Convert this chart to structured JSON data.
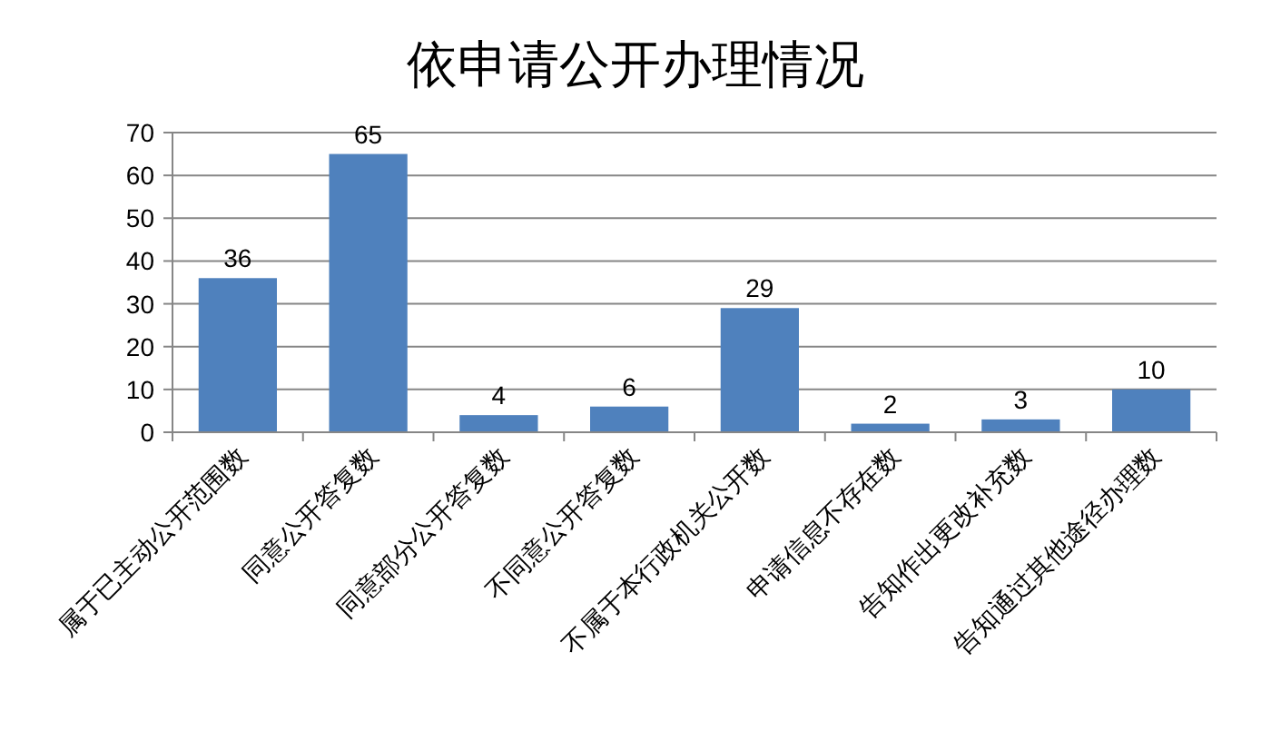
{
  "chart_data": {
    "type": "bar",
    "title": "依申请公开办理情况",
    "categories": [
      "属于已主动公开范围数",
      "同意公开答复数",
      "同意部分公开答复数",
      "不同意公开答复数",
      "不属于本行政机关公开数",
      "申请信息不存在数",
      "告知作出更改补充数",
      "告知通过其他途径办理数"
    ],
    "values": [
      36,
      65,
      4,
      6,
      29,
      2,
      3,
      10
    ],
    "color": "#4f81bd",
    "ylim": [
      0,
      70
    ],
    "yticks": [
      0,
      10,
      20,
      30,
      40,
      50,
      60,
      70
    ],
    "grid": "y",
    "data_labels": true
  }
}
